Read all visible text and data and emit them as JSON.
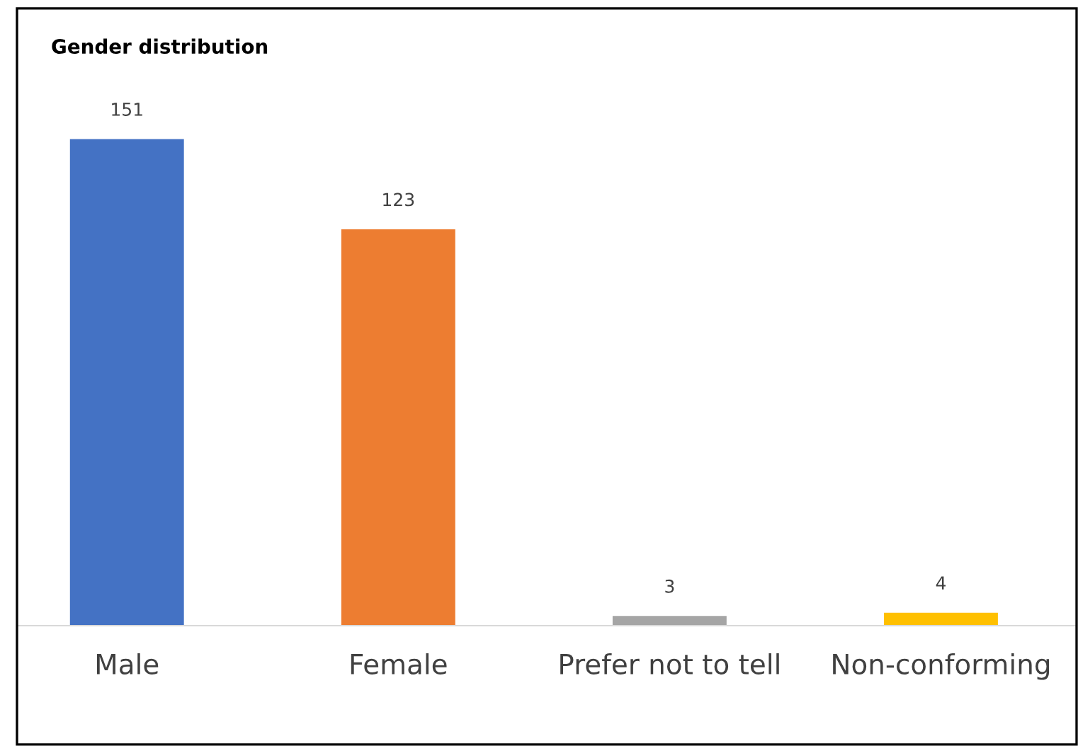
{
  "chart_data": {
    "type": "bar",
    "title": "Gender distribution",
    "categories": [
      "Male",
      "Female",
      "Prefer not to tell",
      "Non-conforming"
    ],
    "values": [
      151,
      123,
      3,
      4
    ],
    "colors": [
      "#4472c4",
      "#ed7d31",
      "#a5a5a5",
      "#ffc000"
    ],
    "data_labels": true,
    "grid": false,
    "legend": false
  }
}
